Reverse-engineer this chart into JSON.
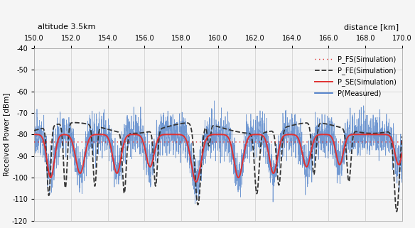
{
  "title_left": "altitude 3.5km",
  "title_right": "distance [km]",
  "ylabel": "Received Power [dBm]",
  "xlim": [
    150.0,
    170.0
  ],
  "ylim": [
    -120,
    -40
  ],
  "yticks": [
    -120,
    -110,
    -100,
    -90,
    -80,
    -70,
    -60,
    -50,
    -40
  ],
  "xticks": [
    150.0,
    152.0,
    154.0,
    156.0,
    158.0,
    160.0,
    162.0,
    164.0,
    166.0,
    168.0,
    170.0
  ],
  "background_color": "#f5f5f5",
  "grid_color": "#cccccc",
  "legend_entries": [
    "P_FS(Simulation)",
    "P_FE(Simulation)",
    "P_SE(Simulation)",
    "P(Measured)"
  ],
  "p_fs_level": -83.5,
  "p_se_base": -80.0,
  "p_fe_peak": -77.0,
  "seed": 42,
  "p_se_dip_centers": [
    150.9,
    152.5,
    154.5,
    156.3,
    158.8,
    161.1,
    163.0,
    164.8,
    166.6,
    169.8
  ],
  "p_se_dip_depths": [
    20,
    18,
    18,
    15,
    22,
    20,
    18,
    15,
    14,
    14
  ],
  "p_se_dip_widths": [
    0.5,
    0.6,
    0.55,
    0.55,
    0.65,
    0.6,
    0.55,
    0.55,
    0.5,
    0.5
  ],
  "p_fe_dip_centers": [
    150.8,
    151.7,
    153.3,
    154.9,
    156.6,
    158.9,
    159.5,
    162.1,
    163.3,
    165.2,
    167.1,
    169.7
  ],
  "p_fe_dip_depths": [
    32,
    30,
    28,
    28,
    26,
    38,
    10,
    28,
    26,
    24,
    24,
    38
  ],
  "p_fe_dip_widths": [
    0.25,
    0.25,
    0.25,
    0.25,
    0.25,
    0.4,
    0.2,
    0.3,
    0.3,
    0.28,
    0.28,
    0.35
  ]
}
